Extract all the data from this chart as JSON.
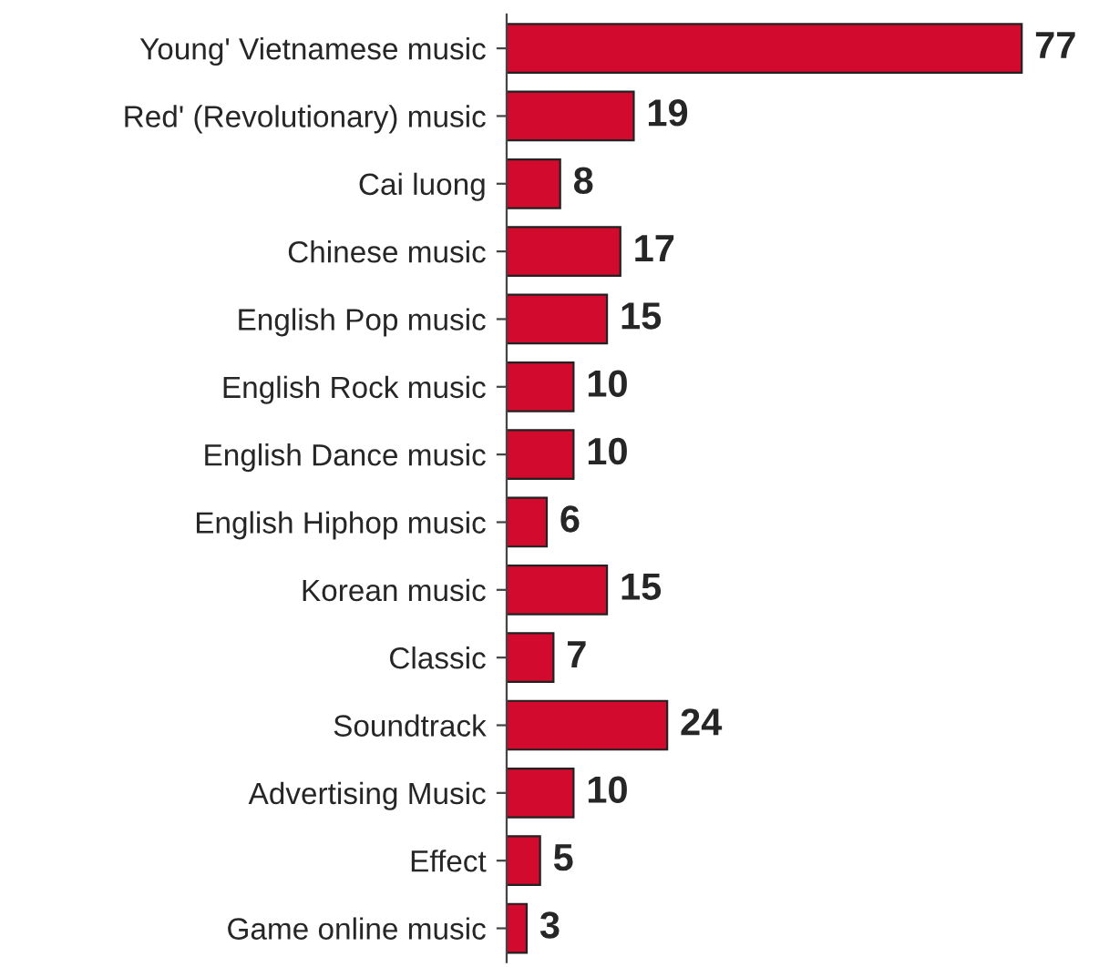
{
  "chart_data": {
    "type": "bar",
    "orientation": "horizontal",
    "categories": [
      "Young' Vietnamese music",
      "Red' (Revolutionary) music",
      "Cai luong",
      "Chinese music",
      "English Pop music",
      "English Rock music",
      "English Dance music",
      "English Hiphop music",
      "Korean music",
      "Classic",
      "Soundtrack",
      "Advertising Music",
      "Effect",
      "Game online music"
    ],
    "values": [
      77,
      19,
      8,
      17,
      15,
      10,
      10,
      6,
      15,
      7,
      24,
      10,
      5,
      3
    ],
    "color": "#d20a2e",
    "data_labels": true,
    "grid": false,
    "legend": false
  }
}
